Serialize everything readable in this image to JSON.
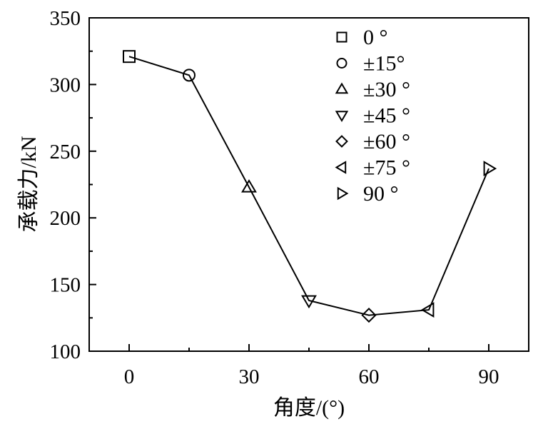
{
  "chart_data": {
    "type": "line",
    "xlabel": "角度/(°)",
    "ylabel": "承载力/kN",
    "xlim": [
      -10,
      100
    ],
    "ylim": [
      100,
      350
    ],
    "xticks": [
      0,
      30,
      60,
      90
    ],
    "xtick_labels": [
      "0",
      "30",
      "60",
      "90"
    ],
    "yticks": [
      100,
      150,
      200,
      250,
      300,
      350
    ],
    "ytick_labels": [
      "100",
      "150",
      "200",
      "250",
      "300",
      "350"
    ],
    "x": [
      0,
      15,
      30,
      45,
      60,
      75,
      90
    ],
    "y": [
      321,
      307,
      223,
      138,
      127,
      131,
      237
    ],
    "markers": [
      "square",
      "circle",
      "triangle-up",
      "triangle-down",
      "diamond",
      "triangle-left",
      "triangle-right"
    ],
    "legend": {
      "placement": "top-right",
      "entries": [
        "0 °",
        "±15°",
        "±30 °",
        "±45 °",
        "±60 °",
        "±75 °",
        "90 °"
      ]
    },
    "grid": false,
    "colors": {
      "line": "#000000",
      "marker_stroke": "#000000"
    }
  }
}
